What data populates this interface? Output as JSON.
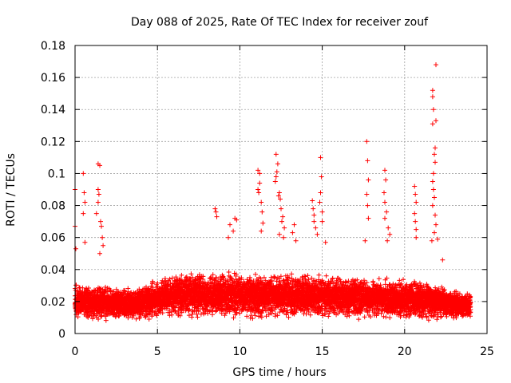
{
  "chart_data": {
    "type": "scatter",
    "title": "Day 088 of 2025, Rate Of TEC Index for receiver zouf",
    "xlabel": "GPS time / hours",
    "ylabel": "ROTI / TECUs",
    "xlim": [
      0,
      25
    ],
    "ylim": [
      0,
      0.18
    ],
    "grid": true,
    "marker": "+",
    "series_color": "#ff0000",
    "x_ticks": [
      0,
      5,
      10,
      15,
      20,
      25
    ],
    "x_tick_labels": [
      "0",
      "5",
      "10",
      "15",
      "20",
      "25"
    ],
    "y_ticks": [
      0,
      0.02,
      0.04,
      0.06,
      0.08,
      0.1,
      0.12,
      0.14,
      0.16,
      0.18
    ],
    "y_tick_labels": [
      "0",
      "0.02",
      "0.04",
      "0.06",
      "0.08",
      "0.1",
      "0.12",
      "0.14",
      "0.16",
      "0.18"
    ],
    "baseline": {
      "x_start": 0,
      "x_end": 24,
      "step_hours": 0.01,
      "points_per_step": 3,
      "band_knots": [
        {
          "x": 0,
          "low": 0.007,
          "high": 0.033
        },
        {
          "x": 3,
          "low": 0.007,
          "high": 0.03
        },
        {
          "x": 4,
          "low": 0.008,
          "high": 0.03
        },
        {
          "x": 6,
          "low": 0.008,
          "high": 0.04
        },
        {
          "x": 9,
          "low": 0.008,
          "high": 0.04
        },
        {
          "x": 11,
          "low": 0.008,
          "high": 0.04
        },
        {
          "x": 13,
          "low": 0.008,
          "high": 0.04
        },
        {
          "x": 16,
          "low": 0.008,
          "high": 0.038
        },
        {
          "x": 19,
          "low": 0.007,
          "high": 0.036
        },
        {
          "x": 21,
          "low": 0.007,
          "high": 0.035
        },
        {
          "x": 22.5,
          "low": 0.008,
          "high": 0.03
        },
        {
          "x": 24,
          "low": 0.008,
          "high": 0.027
        }
      ]
    },
    "spike_points": [
      {
        "x": 0.0,
        "y": 0.09
      },
      {
        "x": 0.0,
        "y": 0.067
      },
      {
        "x": 0.05,
        "y": 0.053
      },
      {
        "x": 0.5,
        "y": 0.1
      },
      {
        "x": 0.55,
        "y": 0.088
      },
      {
        "x": 0.6,
        "y": 0.082
      },
      {
        "x": 0.5,
        "y": 0.075
      },
      {
        "x": 0.6,
        "y": 0.057
      },
      {
        "x": 1.4,
        "y": 0.106
      },
      {
        "x": 1.5,
        "y": 0.105
      },
      {
        "x": 1.4,
        "y": 0.09
      },
      {
        "x": 1.45,
        "y": 0.087
      },
      {
        "x": 1.4,
        "y": 0.082
      },
      {
        "x": 1.3,
        "y": 0.075
      },
      {
        "x": 1.55,
        "y": 0.07
      },
      {
        "x": 1.6,
        "y": 0.067
      },
      {
        "x": 1.65,
        "y": 0.06
      },
      {
        "x": 1.7,
        "y": 0.055
      },
      {
        "x": 1.5,
        "y": 0.05
      },
      {
        "x": 8.5,
        "y": 0.078
      },
      {
        "x": 8.55,
        "y": 0.076
      },
      {
        "x": 8.6,
        "y": 0.073
      },
      {
        "x": 9.4,
        "y": 0.068
      },
      {
        "x": 9.7,
        "y": 0.072
      },
      {
        "x": 9.8,
        "y": 0.071
      },
      {
        "x": 9.3,
        "y": 0.06
      },
      {
        "x": 9.6,
        "y": 0.064
      },
      {
        "x": 11.1,
        "y": 0.102
      },
      {
        "x": 11.2,
        "y": 0.1
      },
      {
        "x": 11.2,
        "y": 0.094
      },
      {
        "x": 11.1,
        "y": 0.09
      },
      {
        "x": 11.15,
        "y": 0.088
      },
      {
        "x": 11.3,
        "y": 0.082
      },
      {
        "x": 11.35,
        "y": 0.076
      },
      {
        "x": 11.4,
        "y": 0.069
      },
      {
        "x": 11.3,
        "y": 0.064
      },
      {
        "x": 12.2,
        "y": 0.112
      },
      {
        "x": 12.3,
        "y": 0.106
      },
      {
        "x": 12.25,
        "y": 0.101
      },
      {
        "x": 12.2,
        "y": 0.098
      },
      {
        "x": 12.15,
        "y": 0.095
      },
      {
        "x": 12.4,
        "y": 0.088
      },
      {
        "x": 12.35,
        "y": 0.086
      },
      {
        "x": 12.45,
        "y": 0.084
      },
      {
        "x": 12.5,
        "y": 0.078
      },
      {
        "x": 12.6,
        "y": 0.073
      },
      {
        "x": 12.55,
        "y": 0.07
      },
      {
        "x": 12.7,
        "y": 0.066
      },
      {
        "x": 12.4,
        "y": 0.062
      },
      {
        "x": 12.65,
        "y": 0.06
      },
      {
        "x": 13.3,
        "y": 0.068
      },
      {
        "x": 13.2,
        "y": 0.063
      },
      {
        "x": 13.4,
        "y": 0.058
      },
      {
        "x": 14.4,
        "y": 0.083
      },
      {
        "x": 14.45,
        "y": 0.078
      },
      {
        "x": 14.5,
        "y": 0.074
      },
      {
        "x": 14.5,
        "y": 0.07
      },
      {
        "x": 14.6,
        "y": 0.066
      },
      {
        "x": 14.9,
        "y": 0.11
      },
      {
        "x": 14.95,
        "y": 0.098
      },
      {
        "x": 14.9,
        "y": 0.088
      },
      {
        "x": 14.85,
        "y": 0.082
      },
      {
        "x": 15.0,
        "y": 0.076
      },
      {
        "x": 15.0,
        "y": 0.07
      },
      {
        "x": 14.7,
        "y": 0.062
      },
      {
        "x": 15.2,
        "y": 0.057
      },
      {
        "x": 17.7,
        "y": 0.12
      },
      {
        "x": 17.75,
        "y": 0.108
      },
      {
        "x": 17.8,
        "y": 0.096
      },
      {
        "x": 17.7,
        "y": 0.087
      },
      {
        "x": 17.75,
        "y": 0.08
      },
      {
        "x": 17.8,
        "y": 0.072
      },
      {
        "x": 17.6,
        "y": 0.058
      },
      {
        "x": 18.8,
        "y": 0.102
      },
      {
        "x": 18.85,
        "y": 0.096
      },
      {
        "x": 18.75,
        "y": 0.088
      },
      {
        "x": 18.8,
        "y": 0.082
      },
      {
        "x": 18.9,
        "y": 0.076
      },
      {
        "x": 18.8,
        "y": 0.072
      },
      {
        "x": 19.0,
        "y": 0.066
      },
      {
        "x": 19.1,
        "y": 0.062
      },
      {
        "x": 18.95,
        "y": 0.058
      },
      {
        "x": 20.6,
        "y": 0.092
      },
      {
        "x": 20.65,
        "y": 0.087
      },
      {
        "x": 20.7,
        "y": 0.082
      },
      {
        "x": 20.6,
        "y": 0.075
      },
      {
        "x": 20.65,
        "y": 0.07
      },
      {
        "x": 20.7,
        "y": 0.065
      },
      {
        "x": 20.7,
        "y": 0.06
      },
      {
        "x": 21.7,
        "y": 0.152
      },
      {
        "x": 21.7,
        "y": 0.148
      },
      {
        "x": 21.75,
        "y": 0.14
      },
      {
        "x": 21.7,
        "y": 0.131
      },
      {
        "x": 21.9,
        "y": 0.168
      },
      {
        "x": 21.9,
        "y": 0.133
      },
      {
        "x": 21.85,
        "y": 0.116
      },
      {
        "x": 21.8,
        "y": 0.112
      },
      {
        "x": 21.85,
        "y": 0.107
      },
      {
        "x": 21.75,
        "y": 0.1
      },
      {
        "x": 21.7,
        "y": 0.095
      },
      {
        "x": 21.75,
        "y": 0.09
      },
      {
        "x": 21.8,
        "y": 0.085
      },
      {
        "x": 21.7,
        "y": 0.08
      },
      {
        "x": 21.85,
        "y": 0.074
      },
      {
        "x": 21.9,
        "y": 0.068
      },
      {
        "x": 21.8,
        "y": 0.063
      },
      {
        "x": 22.0,
        "y": 0.059
      },
      {
        "x": 21.65,
        "y": 0.058
      },
      {
        "x": 22.3,
        "y": 0.046
      }
    ]
  }
}
